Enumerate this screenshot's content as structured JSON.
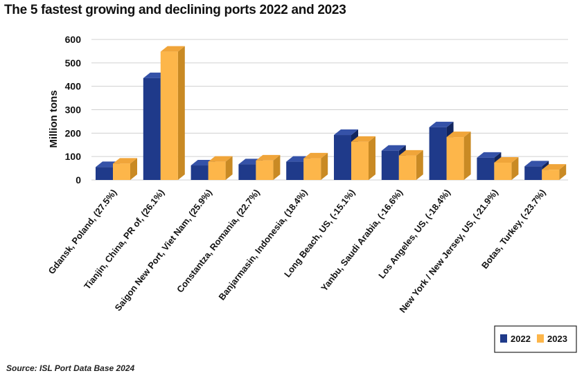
{
  "title": "The 5 fastest growing and declining ports 2022 and 2023",
  "source": "Source: ISL Port Data Base 2024",
  "chart_data": {
    "type": "bar",
    "title": "The 5 fastest growing and declining ports 2022 and 2023",
    "ylabel": "Million tons",
    "xlabel": "",
    "ylim": [
      0,
      600
    ],
    "yticks": [
      0,
      100,
      200,
      300,
      400,
      500,
      600
    ],
    "grid": true,
    "legend_position": "bottom-right",
    "categories": [
      "Gdansk, Poland, (27.5%)",
      "Tianjin, China, PR of, (26.1%)",
      "Saigon New Port, Viet Nam, (25.9%)",
      "Constantza, Romania, (22.7%)",
      "Banjarmasin, Indonesia, (18.4%)",
      "Long Beach, US, (-15.1%)",
      "Yanbu, Saudi Arabia, (-16.6%)",
      "Los Angeles, US, (-18.4%)",
      "New York / New Jersey, US, (-21.9%)",
      "Botas, Turkey, (-23.7%)"
    ],
    "series": [
      {
        "name": "2022",
        "color": "#1F3A8A",
        "side_color": "#12255E",
        "top_color": "#3552A8",
        "values": [
          55,
          435,
          62,
          67,
          78,
          192,
          125,
          225,
          95,
          58
        ]
      },
      {
        "name": "2023",
        "color": "#FDB64A",
        "side_color": "#C98A24",
        "top_color": "#F0A53A",
        "values": [
          70,
          548,
          78,
          83,
          92,
          163,
          104,
          183,
          74,
          44
        ]
      }
    ]
  }
}
